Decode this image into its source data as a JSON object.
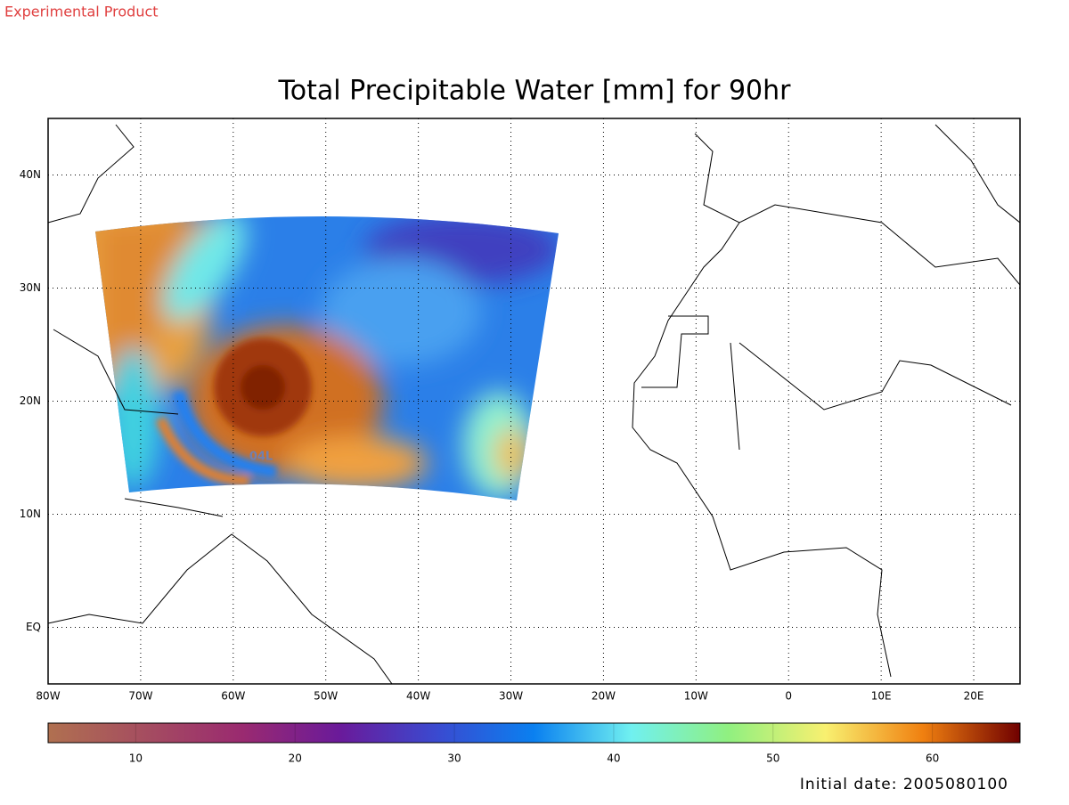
{
  "header": {
    "product": "Experimental Product",
    "title": "Total Precipitable Water [mm] for 90hr"
  },
  "map": {
    "xlim": [
      -80,
      25
    ],
    "ylim": [
      -5,
      45
    ],
    "xticks": [
      {
        "value": -80,
        "label": "80W"
      },
      {
        "value": -70,
        "label": "70W"
      },
      {
        "value": -60,
        "label": "60W"
      },
      {
        "value": -50,
        "label": "50W"
      },
      {
        "value": -40,
        "label": "40W"
      },
      {
        "value": -30,
        "label": "30W"
      },
      {
        "value": -20,
        "label": "20W"
      },
      {
        "value": -10,
        "label": "10W"
      },
      0,
      {
        "value": 10,
        "label": "10E"
      },
      {
        "value": 20,
        "label": "20E"
      }
    ],
    "yticks": [
      {
        "value": 0,
        "label": "EQ"
      },
      {
        "value": 10,
        "label": "10N"
      },
      {
        "value": 20,
        "label": "20N"
      },
      {
        "value": 30,
        "label": "30N"
      },
      {
        "value": 40,
        "label": "40N"
      }
    ],
    "storm_label": "04L"
  },
  "colorbar": {
    "lim": [
      4.5,
      65.5
    ],
    "ticks": [
      10,
      20,
      30,
      40,
      50,
      60
    ]
  },
  "footer": {
    "initial_date": "Initial date: 2005080100"
  }
}
